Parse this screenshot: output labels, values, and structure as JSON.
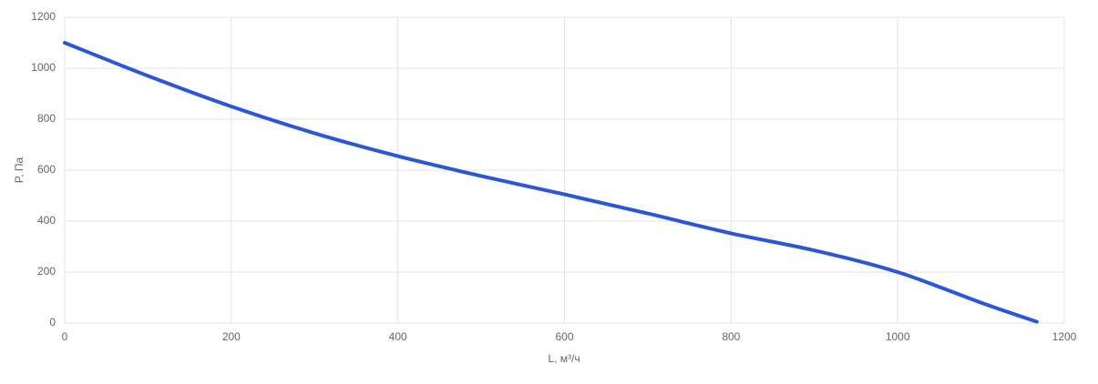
{
  "chart_data": {
    "type": "line",
    "x_label": "L, м³/ч",
    "y_label": "P, Па",
    "x": [
      0,
      100,
      200,
      300,
      400,
      500,
      600,
      700,
      800,
      900,
      1000,
      1100,
      1167
    ],
    "series": [
      {
        "color": "#2a56d8",
        "values": [
          1100,
          970,
          850,
          745,
          655,
          577,
          505,
          430,
          352,
          285,
          200,
          80,
          5
        ]
      }
    ],
    "xlim": [
      0,
      1200
    ],
    "xticks": [
      0,
      200,
      400,
      600,
      800,
      1000,
      1200
    ],
    "ylim": [
      0,
      1200
    ],
    "yticks": [
      0,
      200,
      400,
      600,
      800,
      1000,
      1200
    ],
    "grid": true
  }
}
